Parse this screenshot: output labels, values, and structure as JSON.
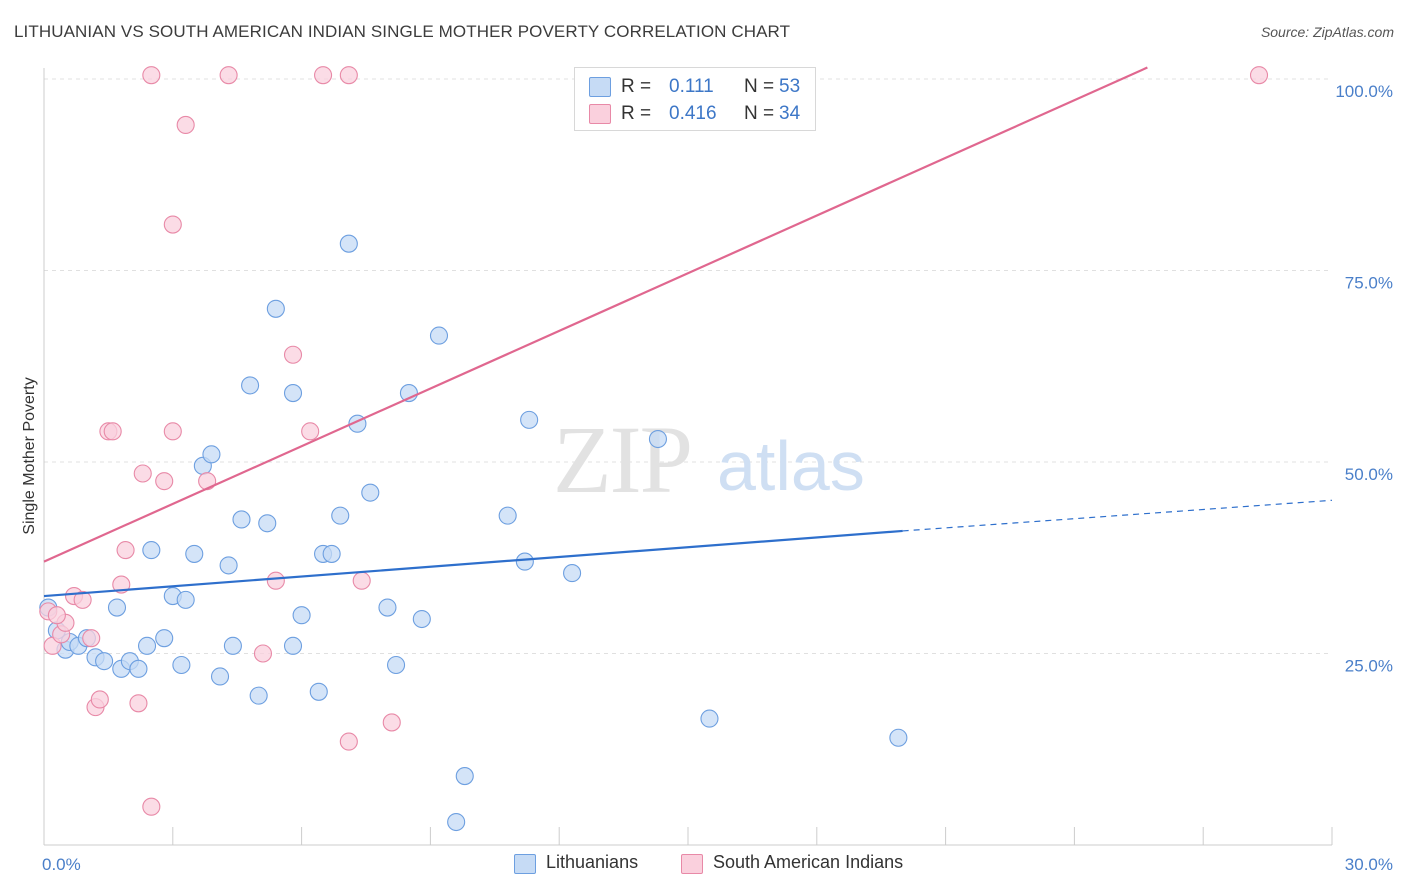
{
  "title": "LITHUANIAN VS SOUTH AMERICAN INDIAN SINGLE MOTHER POVERTY CORRELATION CHART",
  "source": "Source: ZipAtlas.com",
  "watermark": {
    "zip": "ZIP",
    "atlas": "atlas"
  },
  "legend_top": {
    "rows": [
      {
        "r_label": "R =",
        "r_value": "0.111",
        "n_label": "N =",
        "n_value": "53",
        "color": "#a9c8ef"
      },
      {
        "r_label": "R =",
        "r_value": "0.416",
        "n_label": "N =",
        "n_value": "34",
        "color": "#f5b9cb"
      }
    ]
  },
  "legend_bottom": {
    "items": [
      {
        "label": "Lithuanians",
        "color": "#a9c8ef"
      },
      {
        "label": "South American Indians",
        "color": "#f5b9cb"
      }
    ]
  },
  "chart_data": {
    "type": "scatter",
    "title": "LITHUANIAN VS SOUTH AMERICAN INDIAN SINGLE MOTHER POVERTY CORRELATION CHART",
    "xlabel": "",
    "ylabel": "Single Mother Poverty",
    "xlim": [
      0,
      30
    ],
    "ylim": [
      0,
      102
    ],
    "x_tick_labels": [
      {
        "value": 0,
        "label": "0.0%"
      },
      {
        "value": 30,
        "label": "30.0%"
      }
    ],
    "y_tick_labels": [
      {
        "value": 25,
        "label": "25.0%"
      },
      {
        "value": 50,
        "label": "50.0%"
      },
      {
        "value": 75,
        "label": "75.0%"
      },
      {
        "value": 100,
        "label": "100.0%"
      }
    ],
    "grid": "horizontal dashed",
    "legend_position": "top-center",
    "series": [
      {
        "name": "Lithuanians",
        "color": "#6d9fe0",
        "fill": "#c6dbf5",
        "r": 0.111,
        "n": 53,
        "trend": {
          "x0": 0,
          "y0": 32.5,
          "x1": 20,
          "y1": 41,
          "dashed_to_x": 30,
          "dashed_to_y": 45
        },
        "points": [
          [
            0.1,
            31.0
          ],
          [
            0.3,
            28.0
          ],
          [
            0.5,
            25.5
          ],
          [
            0.6,
            26.5
          ],
          [
            0.8,
            26.0
          ],
          [
            1.0,
            27.0
          ],
          [
            1.2,
            24.5
          ],
          [
            1.4,
            24.0
          ],
          [
            1.7,
            31.0
          ],
          [
            1.8,
            23.0
          ],
          [
            2.0,
            24.0
          ],
          [
            2.2,
            23.0
          ],
          [
            2.4,
            26.0
          ],
          [
            2.5,
            38.5
          ],
          [
            2.8,
            27.0
          ],
          [
            3.0,
            32.5
          ],
          [
            3.2,
            23.5
          ],
          [
            3.3,
            32.0
          ],
          [
            3.5,
            38.0
          ],
          [
            3.7,
            49.5
          ],
          [
            3.9,
            51.0
          ],
          [
            4.1,
            22.0
          ],
          [
            4.3,
            36.5
          ],
          [
            4.4,
            26.0
          ],
          [
            4.6,
            42.5
          ],
          [
            4.8,
            60.0
          ],
          [
            5.0,
            19.5
          ],
          [
            5.2,
            42.0
          ],
          [
            5.4,
            70.0
          ],
          [
            5.8,
            26.0
          ],
          [
            5.8,
            59.0
          ],
          [
            6.0,
            30.0
          ],
          [
            6.4,
            20.0
          ],
          [
            6.5,
            38.0
          ],
          [
            6.7,
            38.0
          ],
          [
            6.9,
            43.0
          ],
          [
            7.1,
            78.5
          ],
          [
            7.3,
            55.0
          ],
          [
            7.6,
            46.0
          ],
          [
            8.0,
            31.0
          ],
          [
            8.2,
            23.5
          ],
          [
            8.5,
            59.0
          ],
          [
            8.8,
            29.5
          ],
          [
            9.2,
            66.5
          ],
          [
            9.6,
            3.0
          ],
          [
            9.8,
            9.0
          ],
          [
            10.8,
            43.0
          ],
          [
            11.2,
            37.0
          ],
          [
            11.3,
            55.5
          ],
          [
            12.3,
            35.5
          ],
          [
            14.3,
            53.0
          ],
          [
            15.5,
            16.5
          ],
          [
            19.9,
            14.0
          ]
        ]
      },
      {
        "name": "South American Indians",
        "color": "#e889a7",
        "fill": "#fad0dd",
        "r": 0.416,
        "n": 34,
        "trend": {
          "x0": 0,
          "y0": 37,
          "x1": 25.7,
          "y1": 101.5
        },
        "points": [
          [
            0.1,
            30.5
          ],
          [
            0.2,
            26.0
          ],
          [
            0.4,
            27.5
          ],
          [
            0.5,
            29.0
          ],
          [
            0.7,
            32.5
          ],
          [
            0.9,
            32.0
          ],
          [
            1.1,
            27.0
          ],
          [
            1.2,
            18.0
          ],
          [
            1.3,
            19.0
          ],
          [
            1.5,
            54.0
          ],
          [
            1.6,
            54.0
          ],
          [
            1.8,
            34.0
          ],
          [
            1.9,
            38.5
          ],
          [
            2.2,
            18.5
          ],
          [
            2.3,
            48.5
          ],
          [
            2.5,
            5.0
          ],
          [
            2.5,
            100.5
          ],
          [
            2.8,
            47.5
          ],
          [
            3.0,
            54.0
          ],
          [
            3.0,
            81.0
          ],
          [
            3.3,
            94.0
          ],
          [
            3.8,
            47.5
          ],
          [
            4.3,
            100.5
          ],
          [
            5.1,
            25.0
          ],
          [
            5.4,
            34.5
          ],
          [
            5.8,
            64.0
          ],
          [
            6.2,
            54.0
          ],
          [
            6.5,
            100.5
          ],
          [
            7.1,
            13.5
          ],
          [
            7.1,
            100.5
          ],
          [
            7.4,
            34.5
          ],
          [
            8.1,
            16.0
          ],
          [
            28.3,
            100.5
          ],
          [
            0.3,
            30.0
          ]
        ]
      }
    ]
  }
}
